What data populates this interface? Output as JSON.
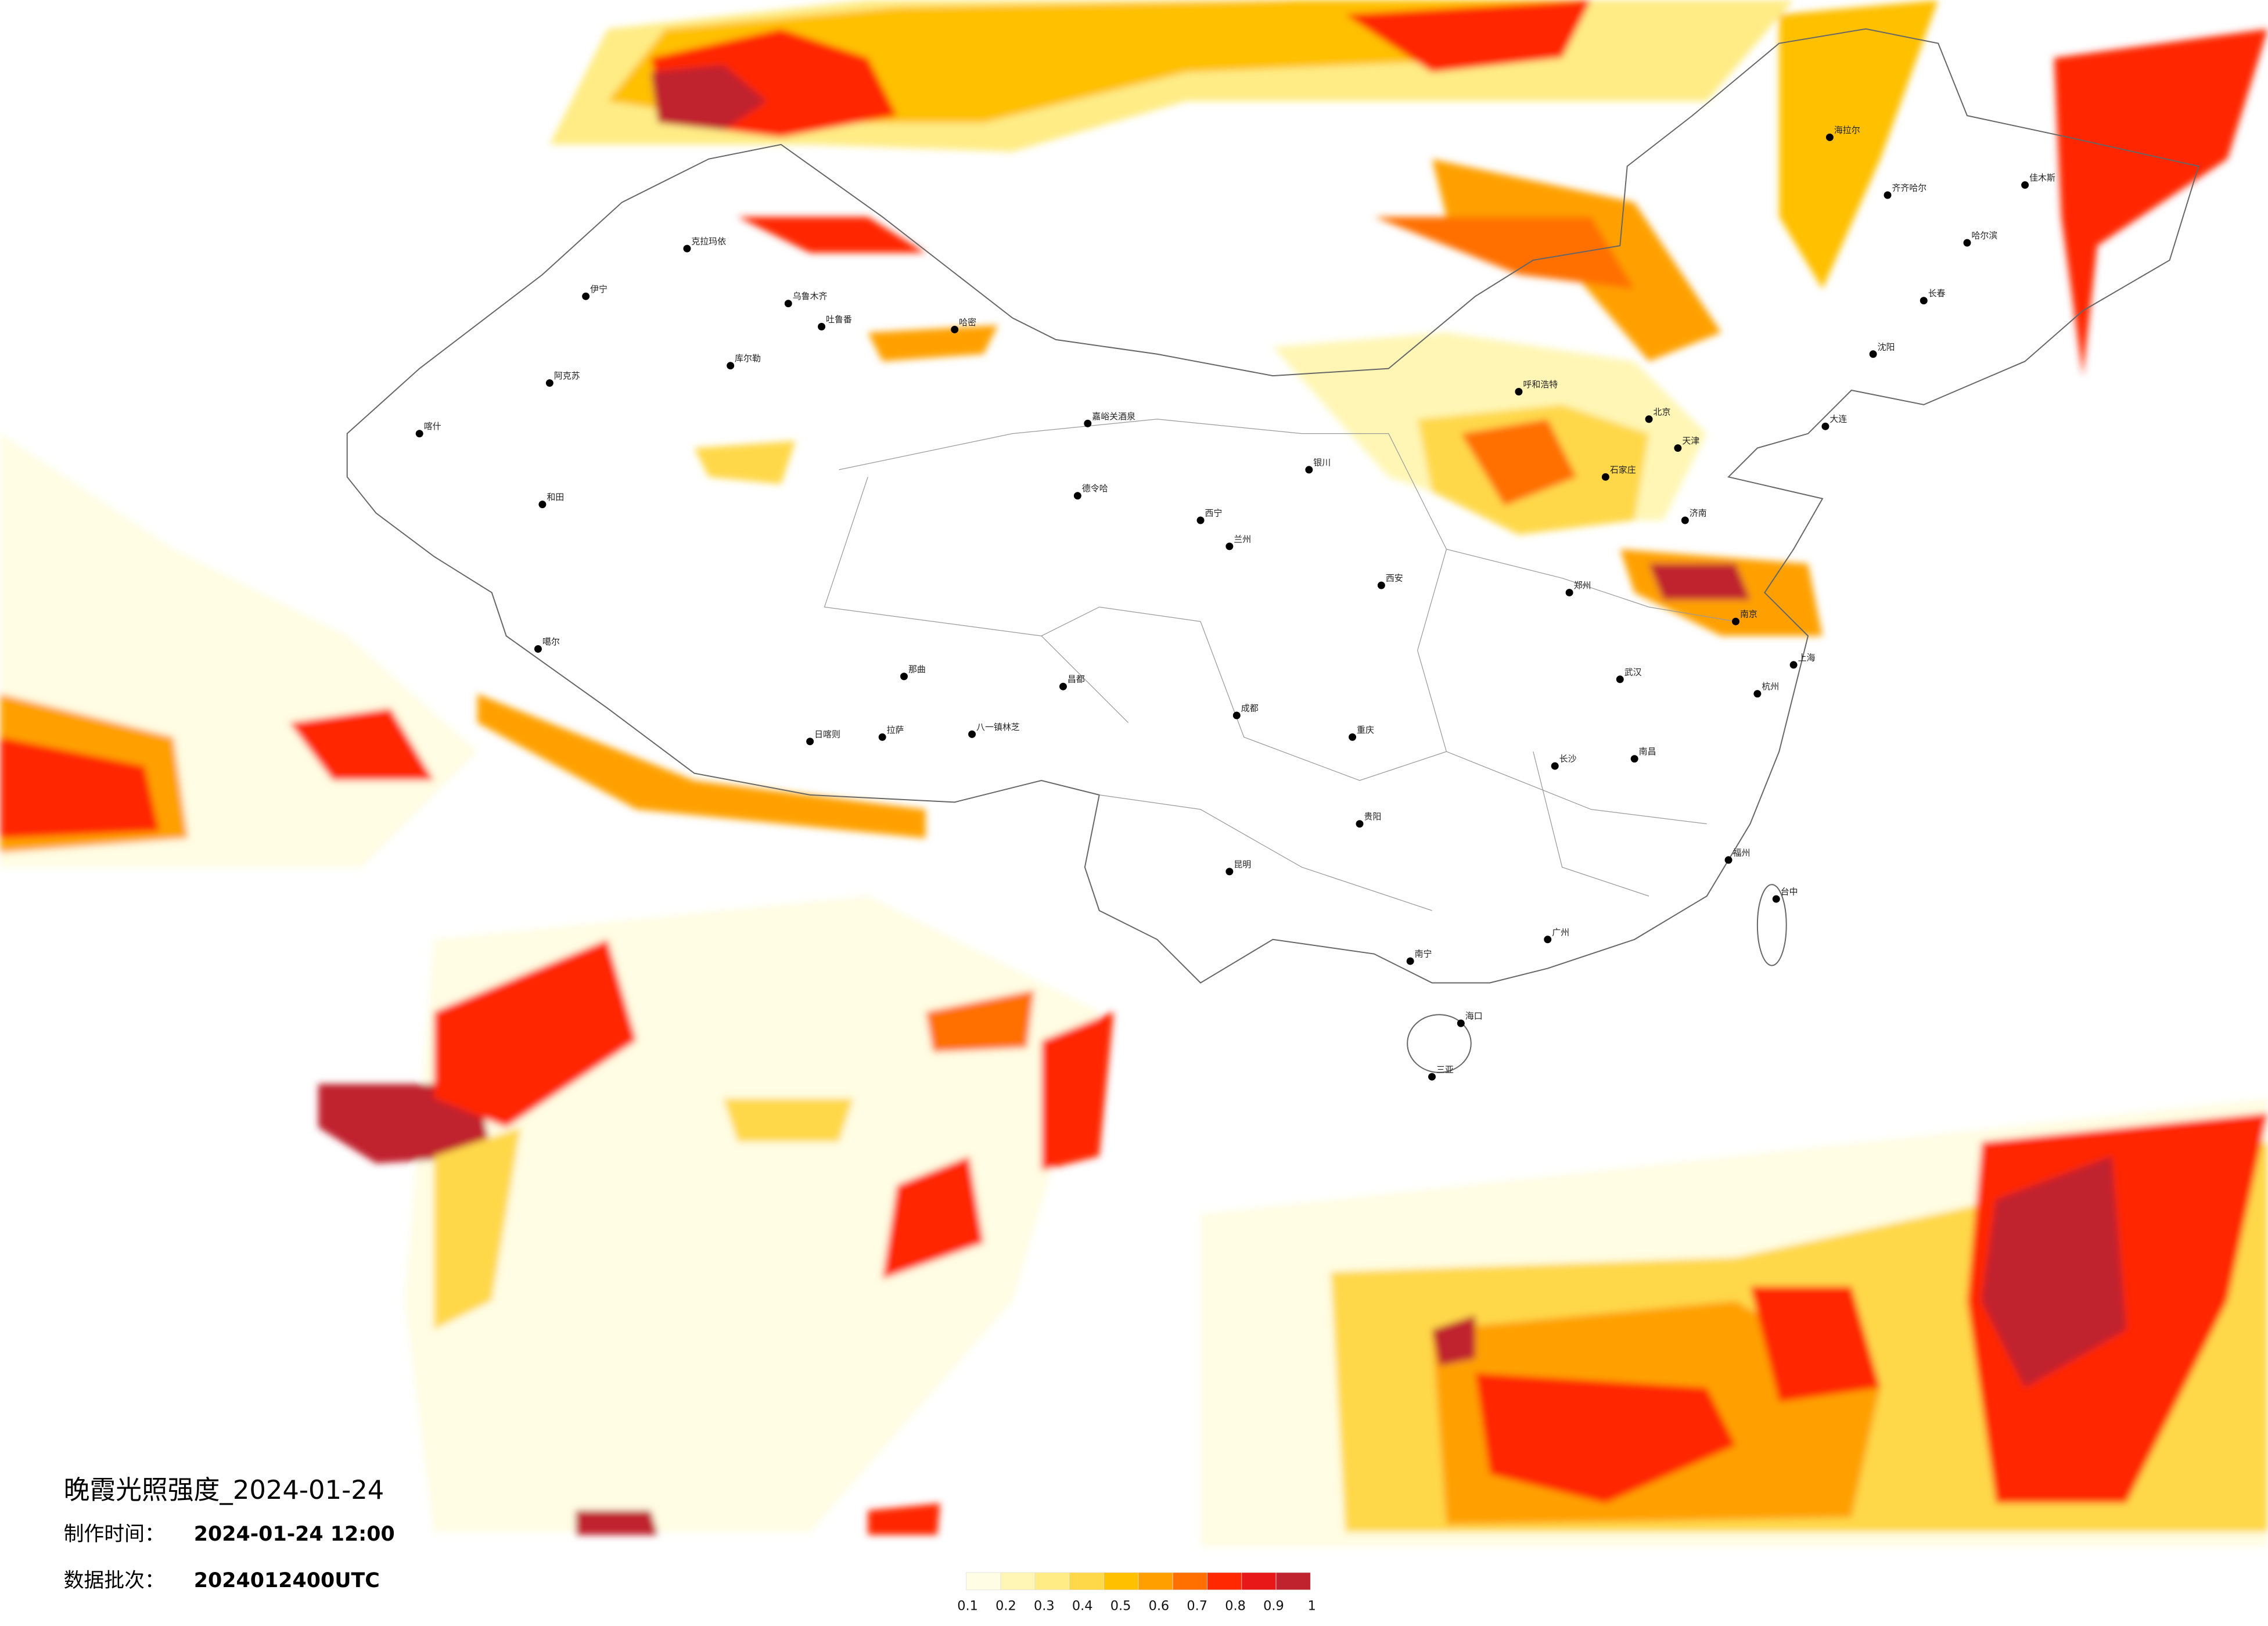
{
  "title": "晚霞光照强度_2024-01-24",
  "info": [
    {
      "label": "制作时间：",
      "value": "2024-01-24 12:00"
    },
    {
      "label": "数据批次：",
      "value": "2024012400UTC"
    }
  ],
  "legend": {
    "ticks": [
      0.1,
      0.2,
      0.3,
      0.4,
      0.5,
      0.6,
      0.7,
      0.8,
      0.9,
      1
    ],
    "colors": [
      "#fffde3",
      "#fff6b5",
      "#ffec85",
      "#ffd84a",
      "#ffc000",
      "#ffa000",
      "#ff7000",
      "#ff2800",
      "#e81818",
      "#c0222e"
    ]
  },
  "cities": [
    "克拉玛依",
    "乌鲁木齐",
    "伊宁",
    "吐鲁番",
    "库尔勒",
    "阿克苏",
    "喀什",
    "和田",
    "哈密",
    "嘉峪关酒泉",
    "德令哈",
    "噶尔",
    "日喀则",
    "拉萨",
    "那曲",
    "八一镇林芝",
    "昌都",
    "西宁",
    "兰州",
    "银川",
    "呼和浩特",
    "北京",
    "天津",
    "石家庄",
    "济南",
    "郑州",
    "西安",
    "成都",
    "重庆",
    "武汉",
    "南京",
    "上海",
    "杭州",
    "长沙",
    "南昌",
    "福州",
    "广州",
    "南宁",
    "昆明",
    "贵阳",
    "海口",
    "三亚",
    "台中",
    "哈尔滨",
    "长春",
    "沈阳",
    "大连",
    "齐齐哈尔",
    "海拉尔",
    "佳木斯"
  ]
}
